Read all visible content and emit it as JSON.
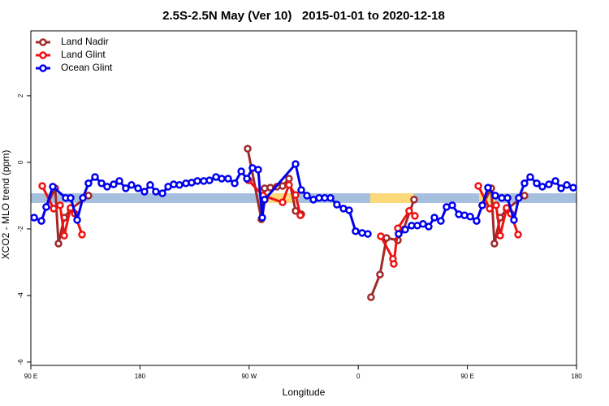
{
  "chart_data": {
    "type": "line",
    "title": "2.5S-2.5N May (Ver 10)   2015-01-01 to 2020-12-18",
    "xlabel": "Longitude",
    "ylabel": "XCO2 - MLO trend (ppm)",
    "xlim": [
      90,
      540
    ],
    "ylim": [
      -6.1,
      3.95
    ],
    "xticks": [
      {
        "value": 90,
        "label": "90 E"
      },
      180,
      {
        "value": 270,
        "label": "90 W"
      },
      {
        "value": 360,
        "label": "0"
      },
      {
        "value": 450,
        "label": "90 E"
      },
      {
        "value": 540,
        "label": "180"
      }
    ],
    "yticks": [
      -6,
      -4,
      -2,
      0,
      2
    ],
    "legend": "top-left",
    "band": {
      "y": [
        -0.93,
        -1.22
      ],
      "color": "#a7bfdf",
      "highlight_color": "#fdd97a",
      "highlight_x": [
        [
          282.2,
          309.0
        ],
        [
          369.9,
          406.0
        ],
        [
          459.6,
          473.0
        ]
      ]
    },
    "series": [
      {
        "name": "Land Nadir",
        "color": "#9e2a2b",
        "x": [
          102.7,
          110.1,
          112.8,
          117.5,
          122.8,
          137.5,
          200,
          268.8,
          280.1,
          282.8,
          287.5,
          292.9,
          297.6,
          302.9,
          308.3,
          313.0,
          340,
          370.5,
          377.9,
          383.3,
          392.7,
          397.3,
          406.0,
          430,
          462.3,
          469.7,
          472.3,
          477.0,
          482.4,
          497.1
        ],
        "values": [
          -1.34,
          -0.78,
          -2.44,
          -1.66,
          -1.41,
          -1.0,
          null,
          0.41,
          -1.71,
          -0.78,
          -0.76,
          -0.73,
          -0.71,
          -0.49,
          -1.46,
          -1.56,
          null,
          -4.05,
          -3.37,
          -2.27,
          -2.34,
          -2.02,
          -1.12,
          null,
          -1.29,
          -0.78,
          -2.44,
          -1.66,
          -1.41,
          -1.0
        ]
      },
      {
        "name": "Land Glint",
        "color": "#ee1111",
        "x": [
          99.4,
          108.8,
          114.1,
          117.5,
          122.8,
          126.2,
          132.2,
          200,
          269.5,
          281.5,
          297.6,
          302.9,
          308.3,
          312.3,
          340,
          378.6,
          388.6,
          389.3,
          392.7,
          402.0,
          406.7,
          430,
          459.0,
          468.4,
          473.7,
          477.0,
          482.4,
          485.8,
          491.8
        ],
        "values": [
          -0.71,
          -1.39,
          -1.29,
          -2.2,
          -1.37,
          -1.54,
          -2.17,
          null,
          -0.54,
          -1.0,
          -1.2,
          -0.68,
          -0.98,
          -1.59,
          null,
          -2.22,
          -2.9,
          -3.05,
          -1.98,
          -1.46,
          -1.61,
          null,
          -0.71,
          -1.39,
          -1.29,
          -2.2,
          -1.37,
          -1.54,
          -2.17
        ]
      },
      {
        "name": "Ocean Glint",
        "color": "#0000ee",
        "x": [
          92.7,
          98.7,
          102.7,
          108.1,
          118.8,
          122.8,
          128.2,
          132.9,
          137.5,
          142.9,
          148.3,
          152.9,
          158.3,
          163.0,
          168.3,
          173.0,
          178.4,
          183.7,
          188.4,
          193.1,
          198.5,
          203.2,
          207.8,
          212.5,
          217.9,
          222.6,
          227.3,
          232.6,
          237.3,
          242.7,
          247.4,
          252.7,
          258.1,
          263.5,
          268.2,
          272.8,
          277.5,
          280.8,
          282.8,
          308.3,
          313.0,
          317.7,
          323.0,
          327.7,
          332.4,
          337.1,
          342.4,
          347.8,
          352.5,
          357.8,
          363.2,
          367.9,
          380,
          393.3,
          398.7,
          404.0,
          408.7,
          413.4,
          418.1,
          422.8,
          428.1,
          432.8,
          437.5,
          442.9,
          447.6,
          452.3,
          457.6,
          462.3,
          467.0,
          473.0,
          478.4,
          483.1,
          488.4,
          492.4,
          497.1,
          501.8,
          507.2,
          511.8,
          517.2,
          522.6,
          527.3,
          532.0,
          537.3
        ],
        "values": [
          -1.66,
          -1.76,
          -1.34,
          -0.73,
          -1.07,
          -1.07,
          -1.73,
          -1.07,
          -0.63,
          -0.44,
          -0.63,
          -0.73,
          -0.66,
          -0.56,
          -0.78,
          -0.68,
          -0.78,
          -0.88,
          -0.68,
          -0.88,
          -0.93,
          -0.73,
          -0.66,
          -0.68,
          -0.63,
          -0.61,
          -0.56,
          -0.56,
          -0.54,
          -0.44,
          -0.49,
          -0.49,
          -0.63,
          -0.27,
          -0.49,
          -0.17,
          -0.22,
          -1.66,
          -1.12,
          -0.05,
          -0.83,
          -1.0,
          -1.12,
          -1.07,
          -1.07,
          -1.07,
          -1.27,
          -1.39,
          -1.44,
          -2.07,
          -2.12,
          -2.15,
          null,
          -2.15,
          -2.02,
          -1.9,
          -1.9,
          -1.85,
          -1.93,
          -1.66,
          -1.76,
          -1.34,
          -1.29,
          -1.56,
          -1.59,
          -1.63,
          -1.76,
          -1.29,
          -0.76,
          -1.0,
          -1.07,
          -1.07,
          -1.73,
          -1.07,
          -0.63,
          -0.44,
          -0.63,
          -0.73,
          -0.66,
          -0.56,
          -0.78,
          -0.68,
          -0.76
        ]
      }
    ]
  }
}
